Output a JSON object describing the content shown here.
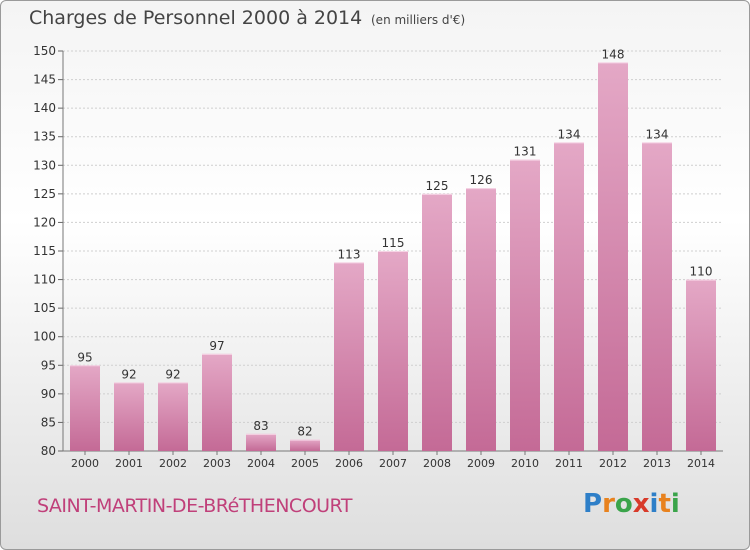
{
  "header": {
    "title": "Charges de Personnel 2000 à 2014",
    "unit": "(en milliers d'€)"
  },
  "footer": {
    "place": "SAINT-MARTIN-DE-BRéTHENCOURT",
    "logo_letters": [
      "P",
      "r",
      "o",
      "x",
      "i",
      "t",
      "i"
    ],
    "logo_colors": [
      "#2e7fc8",
      "#e8821e",
      "#3aa44a",
      "#d83a2a",
      "#2e7fc8",
      "#e8821e",
      "#3aa44a"
    ]
  },
  "colors": {
    "bar": "#c46a96",
    "bar_light": "#e4a8c6",
    "grid": "#cfcfcf",
    "axis_text": "#333333",
    "place_text": "#c0407a"
  },
  "chart_data": {
    "type": "bar",
    "categories": [
      "2000",
      "2001",
      "2002",
      "2003",
      "2004",
      "2005",
      "2006",
      "2007",
      "2008",
      "2009",
      "2010",
      "2011",
      "2012",
      "2013",
      "2014"
    ],
    "values": [
      95,
      92,
      92,
      97,
      83,
      82,
      113,
      115,
      125,
      126,
      131,
      134,
      148,
      134,
      110
    ],
    "ylim": [
      80,
      150
    ],
    "yticks": [
      80,
      85,
      90,
      95,
      100,
      105,
      110,
      115,
      120,
      125,
      130,
      135,
      140,
      145,
      150
    ],
    "grid": true,
    "data_labels": true
  }
}
